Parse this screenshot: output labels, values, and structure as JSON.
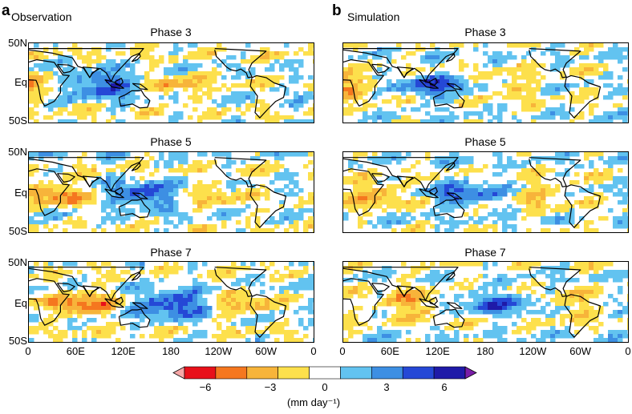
{
  "columns": [
    {
      "letter": "a",
      "title": "Observation"
    },
    {
      "letter": "b",
      "title": "Simulation"
    }
  ],
  "phases": [
    "Phase 3",
    "Phase 5",
    "Phase 7"
  ],
  "lat_labels": [
    "50N",
    "Eq",
    "50S"
  ],
  "lon_labels": [
    "0",
    "60E",
    "120E",
    "180",
    "120W",
    "60W",
    "0"
  ],
  "colorbar": {
    "ticks": [
      "−6",
      "−3",
      "0",
      "3",
      "6"
    ],
    "units": "(mm day⁻¹)",
    "colors": [
      "#f7a7a7",
      "#e8101a",
      "#f5771f",
      "#f7b43a",
      "#fde04c",
      "#ffffff",
      "#62c3f0",
      "#3d8fe3",
      "#2548d6",
      "#1f1aa8",
      "#7a1ea8"
    ]
  }
}
